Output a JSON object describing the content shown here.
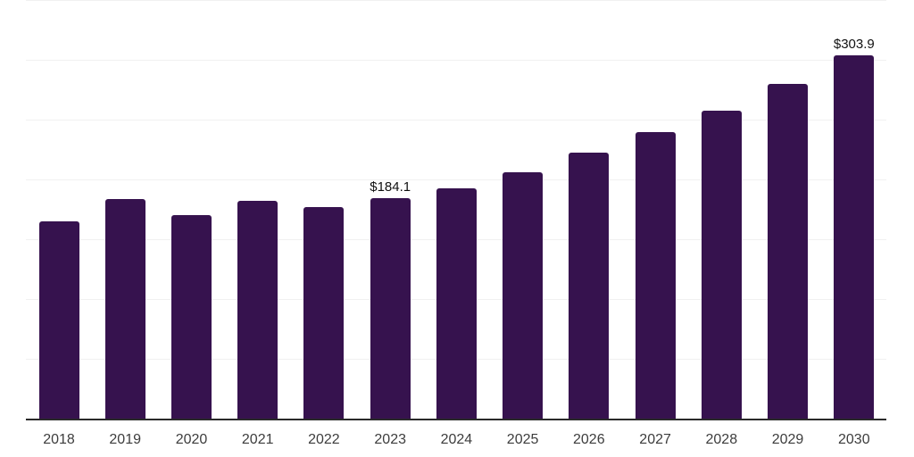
{
  "chart_data": {
    "type": "bar",
    "title": "",
    "xlabel": "",
    "ylabel": "",
    "categories": [
      "2018",
      "2019",
      "2020",
      "2021",
      "2022",
      "2023",
      "2024",
      "2025",
      "2026",
      "2027",
      "2028",
      "2029",
      "2030"
    ],
    "values": [
      165.0,
      183.7,
      170.2,
      182.4,
      176.7,
      184.1,
      192.3,
      205.8,
      222.2,
      239.3,
      257.8,
      279.6,
      303.9
    ],
    "data_labels": [
      {
        "category": "2023",
        "text": "$184.1"
      },
      {
        "category": "2030",
        "text": "$303.9"
      }
    ],
    "ylim": [
      0,
      350
    ],
    "gridline_values": [
      50,
      100,
      150,
      200,
      250,
      300,
      350
    ],
    "grid": true,
    "legend": false,
    "y_axis_labels_visible": false
  },
  "colors": {
    "background": "#ffffff",
    "bar": "#36124E",
    "axis_line": "#2a2a2a",
    "gridline": "#f1f1f1",
    "tick_label": "#3d3d3d",
    "data_label": "#111111"
  }
}
